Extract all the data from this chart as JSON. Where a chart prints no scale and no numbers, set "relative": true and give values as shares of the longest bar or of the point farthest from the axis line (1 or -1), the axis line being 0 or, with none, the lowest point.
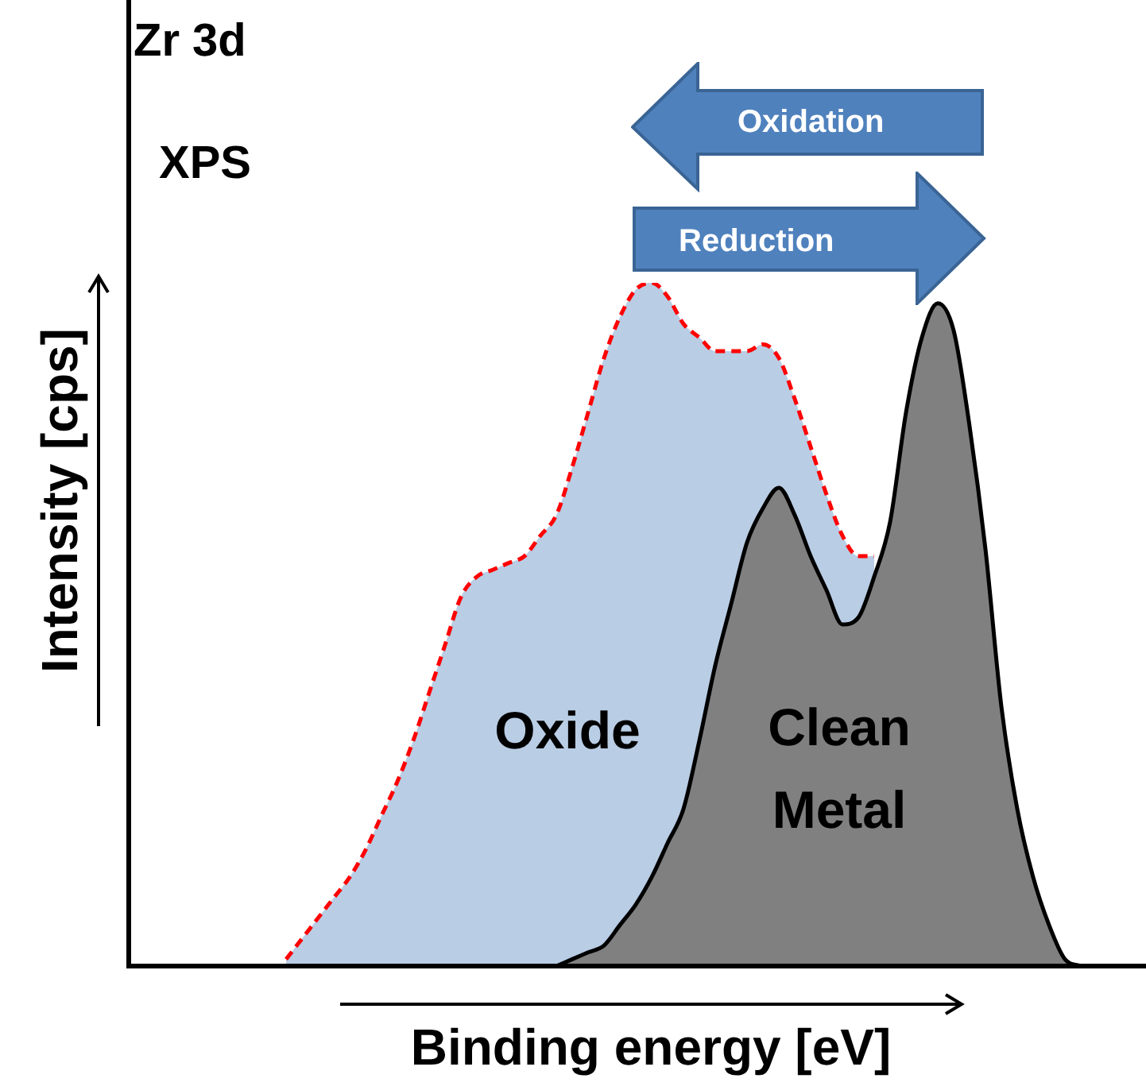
{
  "chart_data": {
    "type": "area",
    "title": "Zr 3d",
    "subtitle": "XPS",
    "xlabel": "Binding energy [eV]",
    "ylabel": "Intensity [cps]",
    "relative": true,
    "tick_labels": false,
    "legend": false,
    "marker": "none",
    "annotations": [
      "Oxidation",
      "Reduction"
    ],
    "categories": [
      null,
      null,
      null,
      null,
      null,
      null,
      null,
      null,
      null,
      null,
      null,
      null,
      null,
      null,
      null,
      null,
      null,
      null,
      null,
      null,
      null,
      null,
      null,
      null,
      null,
      null,
      null,
      null,
      null,
      null,
      null,
      null,
      null,
      null,
      null,
      null,
      null,
      null,
      null,
      null,
      null,
      null,
      null,
      null,
      null,
      null,
      null,
      null,
      null,
      null,
      null,
      null
    ],
    "series": [
      {
        "name": "Oxide",
        "color": "#b9cde5",
        "values": [
          null,
          0.01,
          0.04,
          0.07,
          0.1,
          0.13,
          0.17,
          0.22,
          0.27,
          0.33,
          0.4,
          0.47,
          0.54,
          0.57,
          0.58,
          0.59,
          0.6,
          0.63,
          0.66,
          0.73,
          0.81,
          0.89,
          0.95,
          0.99,
          1.0,
          0.98,
          0.94,
          0.92,
          0.9,
          0.9,
          0.9,
          0.91,
          0.89,
          0.83,
          0.76,
          0.69,
          0.63,
          0.6,
          0.6,
          null,
          null,
          null,
          null,
          null,
          null,
          null,
          null,
          null,
          null,
          null,
          null,
          null
        ]
      },
      {
        "type": "line",
        "color": "#ff0000",
        "line_style": "dashed",
        "values": [
          null,
          0.01,
          0.04,
          0.07,
          0.1,
          0.13,
          0.17,
          0.22,
          0.27,
          0.33,
          0.4,
          0.47,
          0.54,
          0.57,
          0.58,
          0.59,
          0.6,
          0.63,
          0.66,
          0.73,
          0.81,
          0.89,
          0.95,
          0.99,
          1.0,
          0.98,
          0.94,
          0.92,
          0.9,
          0.9,
          0.9,
          0.91,
          0.89,
          0.83,
          0.76,
          0.69,
          0.63,
          0.6,
          0.6,
          null,
          null,
          null,
          null,
          null,
          null,
          null,
          null,
          null,
          null,
          null,
          null,
          null
        ]
      },
      {
        "name": "Clean Metal",
        "color": "#808080",
        "line_style": "solid",
        "values": [
          null,
          null,
          null,
          null,
          null,
          null,
          null,
          null,
          null,
          null,
          null,
          null,
          null,
          null,
          null,
          null,
          null,
          null,
          0,
          0.01,
          0.02,
          0.03,
          0.06,
          0.09,
          0.13,
          0.18,
          0.23,
          0.33,
          0.44,
          0.53,
          0.62,
          0.67,
          0.7,
          0.66,
          0.6,
          0.55,
          0.5,
          0.51,
          0.57,
          0.65,
          0.81,
          0.92,
          0.97,
          0.93,
          0.79,
          0.61,
          0.38,
          0.23,
          0.13,
          0.06,
          0.01,
          0
        ]
      }
    ]
  }
}
